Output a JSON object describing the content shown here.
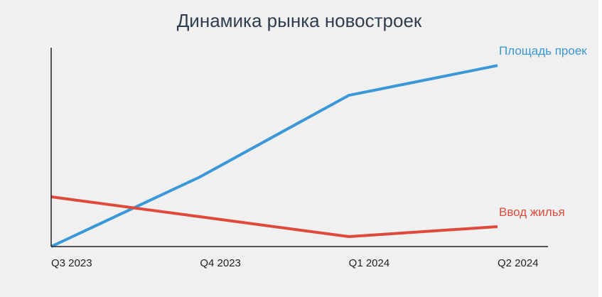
{
  "chart_data": {
    "type": "line",
    "title": "Динамика рынка новостроек",
    "xlabel": "",
    "ylabel": "",
    "categories": [
      "Q3 2023",
      "Q4 2023",
      "Q1 2024",
      "Q2 2024"
    ],
    "series": [
      {
        "name": "Площадь проек",
        "color": "#3b98d8",
        "values": [
          0,
          35,
          76,
          91
        ]
      },
      {
        "name": "Ввод жилья",
        "color": "#e04a3c",
        "values": [
          25,
          15,
          5,
          10
        ]
      }
    ],
    "ylim": [
      0,
      100
    ],
    "grid": false,
    "legend": "end-of-line labels"
  }
}
